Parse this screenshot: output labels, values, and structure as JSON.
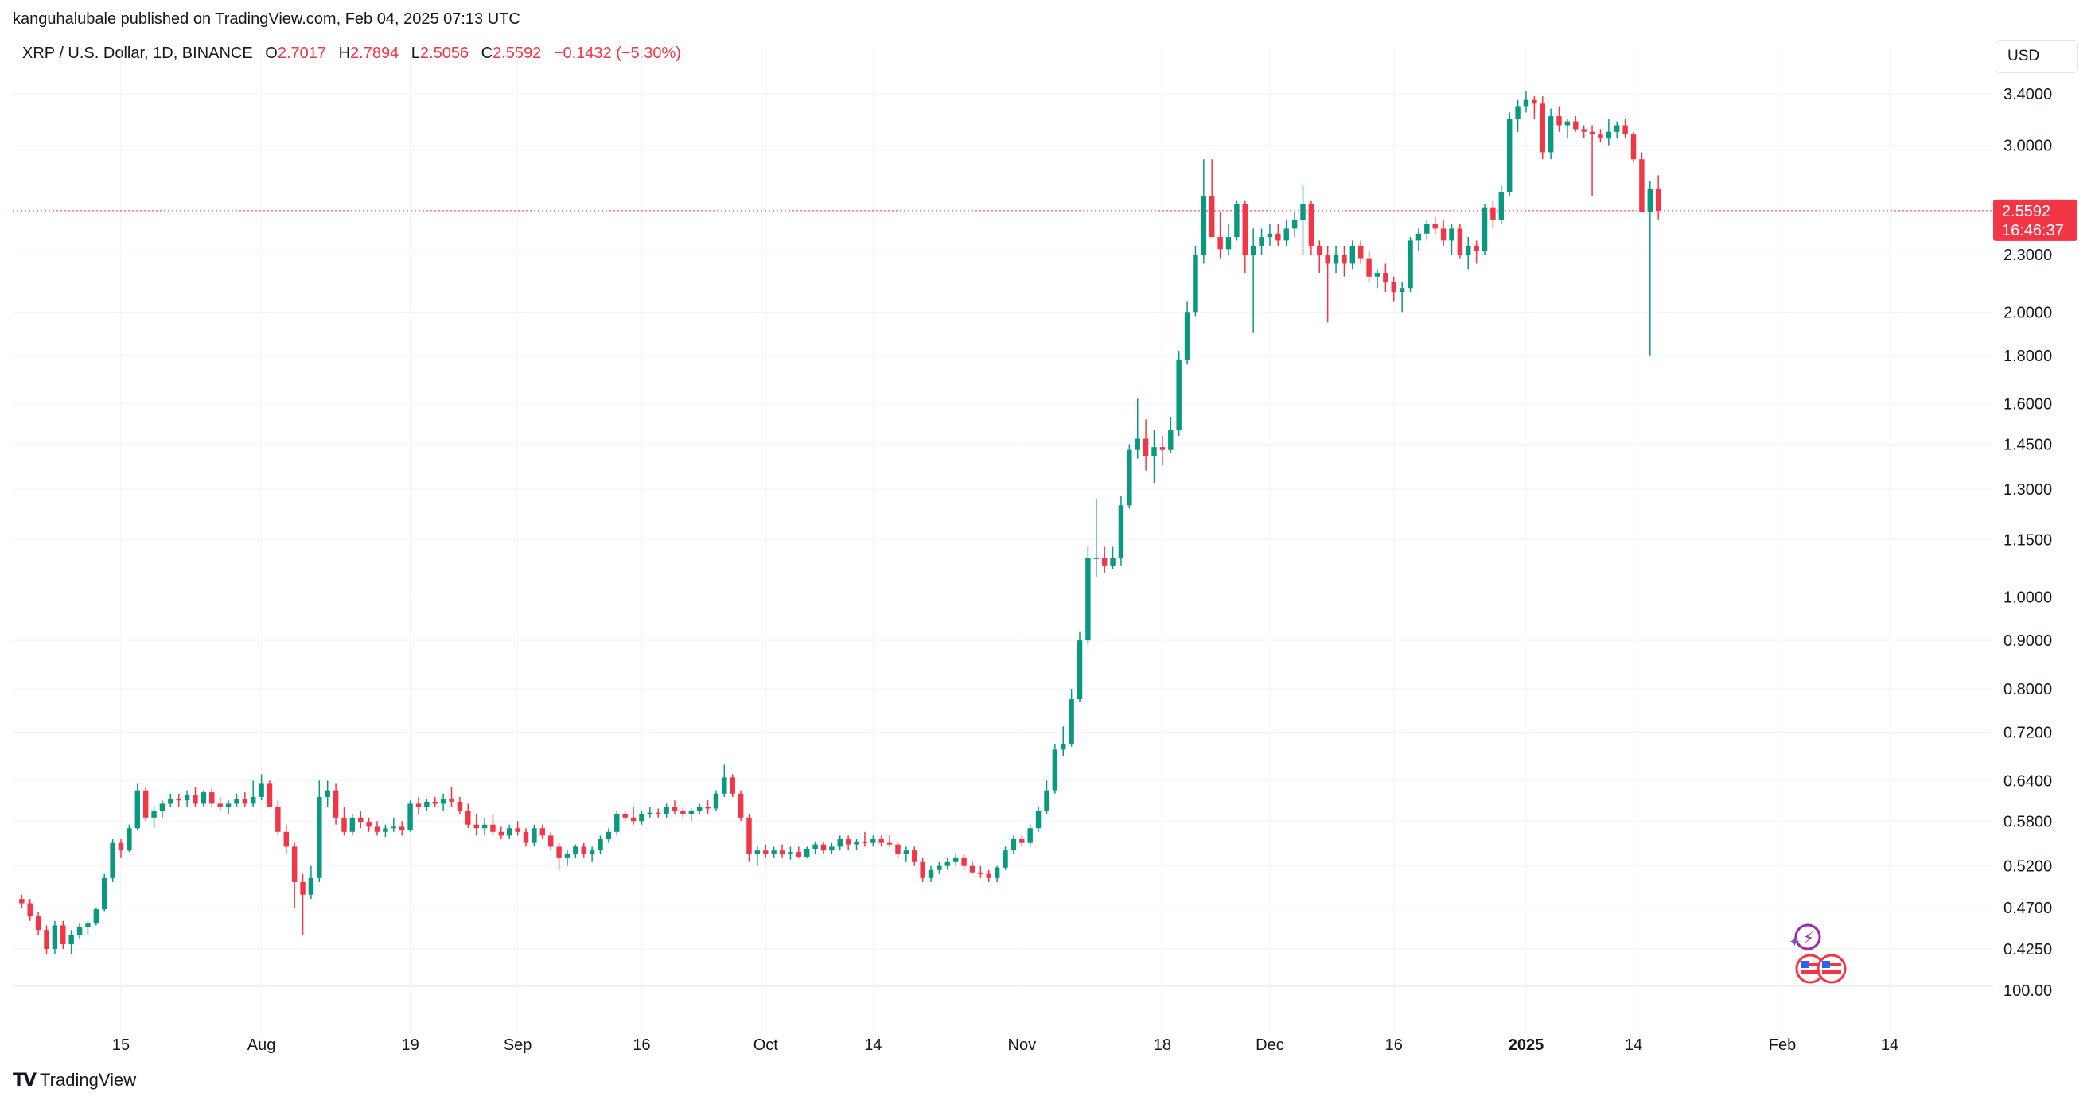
{
  "publisher_line": "kanguhalubale published on TradingView.com, Feb 04, 2025 07:13 UTC",
  "legend": {
    "symbol": "XRP / U.S. Dollar, 1D, BINANCE",
    "open_label": "O",
    "open": "2.7017",
    "high_label": "H",
    "high": "2.7894",
    "low_label": "L",
    "low": "2.5056",
    "close_label": "C",
    "close": "2.5592",
    "change": "−0.1432 (−5.30%)"
  },
  "currency": "USD",
  "current_price_label": "2.5592",
  "countdown_label": "16:46:37",
  "footer_brand": "TradingView",
  "colors": {
    "up": "#089981",
    "down": "#f23645",
    "grid": "#f0f3fa",
    "axis_text": "#131722",
    "last_price": "#f23645"
  },
  "chart_data": {
    "type": "candlestick",
    "scale": "log",
    "y_ticks": [
      "3.4000",
      "3.0000",
      "2.3000",
      "2.0000",
      "1.8000",
      "1.6000",
      "1.4500",
      "1.3000",
      "1.1500",
      "1.0000",
      "0.9000",
      "0.8000",
      "0.7200",
      "0.6400",
      "0.5800",
      "0.5200",
      "0.4700",
      "0.4250"
    ],
    "y_tick_values": [
      3.4,
      3.0,
      2.3,
      2.0,
      1.8,
      1.6,
      1.45,
      1.3,
      1.15,
      1.0,
      0.9,
      0.8,
      0.72,
      0.64,
      0.58,
      0.52,
      0.47,
      0.425
    ],
    "y_bottom_label": "100.00",
    "x_ticks": [
      {
        "label": "15",
        "date": "2024-07-15"
      },
      {
        "label": "Aug",
        "date": "2024-08-01"
      },
      {
        "label": "19",
        "date": "2024-08-19"
      },
      {
        "label": "Sep",
        "date": "2024-09-01"
      },
      {
        "label": "16",
        "date": "2024-09-16"
      },
      {
        "label": "Oct",
        "date": "2024-10-01"
      },
      {
        "label": "14",
        "date": "2024-10-14"
      },
      {
        "label": "Nov",
        "date": "2024-11-01"
      },
      {
        "label": "18",
        "date": "2024-11-18"
      },
      {
        "label": "Dec",
        "date": "2024-12-01"
      },
      {
        "label": "16",
        "date": "2024-12-16"
      },
      {
        "label": "2025",
        "date": "2025-01-01",
        "bold": true
      },
      {
        "label": "14",
        "date": "2025-01-14"
      },
      {
        "label": "Feb",
        "date": "2025-02-01"
      },
      {
        "label": "14",
        "date": "2025-02-14"
      }
    ],
    "start_date": "2024-07-03",
    "ohlc": [
      [
        0.48,
        0.485,
        0.47,
        0.475
      ],
      [
        0.475,
        0.48,
        0.455,
        0.46
      ],
      [
        0.46,
        0.465,
        0.44,
        0.445
      ],
      [
        0.445,
        0.45,
        0.42,
        0.425
      ],
      [
        0.425,
        0.455,
        0.42,
        0.45
      ],
      [
        0.45,
        0.455,
        0.425,
        0.43
      ],
      [
        0.43,
        0.445,
        0.42,
        0.44
      ],
      [
        0.44,
        0.452,
        0.435,
        0.448
      ],
      [
        0.448,
        0.455,
        0.44,
        0.452
      ],
      [
        0.452,
        0.47,
        0.45,
        0.468
      ],
      [
        0.468,
        0.51,
        0.466,
        0.505
      ],
      [
        0.505,
        0.555,
        0.5,
        0.55
      ],
      [
        0.55,
        0.555,
        0.53,
        0.54
      ],
      [
        0.54,
        0.575,
        0.538,
        0.57
      ],
      [
        0.57,
        0.635,
        0.568,
        0.625
      ],
      [
        0.625,
        0.63,
        0.58,
        0.585
      ],
      [
        0.585,
        0.6,
        0.57,
        0.595
      ],
      [
        0.595,
        0.61,
        0.585,
        0.605
      ],
      [
        0.605,
        0.62,
        0.6,
        0.612
      ],
      [
        0.612,
        0.62,
        0.6,
        0.61
      ],
      [
        0.61,
        0.625,
        0.6,
        0.618
      ],
      [
        0.618,
        0.63,
        0.6,
        0.605
      ],
      [
        0.605,
        0.625,
        0.6,
        0.622
      ],
      [
        0.622,
        0.628,
        0.6,
        0.605
      ],
      [
        0.605,
        0.615,
        0.595,
        0.6
      ],
      [
        0.6,
        0.61,
        0.59,
        0.605
      ],
      [
        0.605,
        0.62,
        0.6,
        0.612
      ],
      [
        0.612,
        0.622,
        0.6,
        0.605
      ],
      [
        0.605,
        0.64,
        0.6,
        0.615
      ],
      [
        0.615,
        0.65,
        0.61,
        0.635
      ],
      [
        0.635,
        0.64,
        0.6,
        0.6
      ],
      [
        0.6,
        0.61,
        0.56,
        0.565
      ],
      [
        0.565,
        0.575,
        0.535,
        0.545
      ],
      [
        0.545,
        0.55,
        0.47,
        0.5
      ],
      [
        0.5,
        0.51,
        0.44,
        0.485
      ],
      [
        0.485,
        0.52,
        0.48,
        0.505
      ],
      [
        0.505,
        0.64,
        0.5,
        0.615
      ],
      [
        0.615,
        0.64,
        0.6,
        0.625
      ],
      [
        0.625,
        0.635,
        0.575,
        0.585
      ],
      [
        0.585,
        0.6,
        0.56,
        0.565
      ],
      [
        0.565,
        0.59,
        0.56,
        0.585
      ],
      [
        0.585,
        0.595,
        0.57,
        0.578
      ],
      [
        0.578,
        0.585,
        0.565,
        0.572
      ],
      [
        0.572,
        0.58,
        0.56,
        0.565
      ],
      [
        0.565,
        0.575,
        0.558,
        0.57
      ],
      [
        0.57,
        0.585,
        0.565,
        0.572
      ],
      [
        0.572,
        0.58,
        0.56,
        0.568
      ],
      [
        0.568,
        0.61,
        0.565,
        0.605
      ],
      [
        0.605,
        0.615,
        0.59,
        0.6
      ],
      [
        0.6,
        0.612,
        0.595,
        0.608
      ],
      [
        0.608,
        0.615,
        0.6,
        0.605
      ],
      [
        0.605,
        0.62,
        0.595,
        0.612
      ],
      [
        0.612,
        0.63,
        0.6,
        0.608
      ],
      [
        0.608,
        0.615,
        0.59,
        0.595
      ],
      [
        0.595,
        0.605,
        0.57,
        0.575
      ],
      [
        0.575,
        0.59,
        0.56,
        0.57
      ],
      [
        0.57,
        0.585,
        0.56,
        0.575
      ],
      [
        0.575,
        0.59,
        0.56,
        0.565
      ],
      [
        0.565,
        0.572,
        0.555,
        0.56
      ],
      [
        0.56,
        0.575,
        0.555,
        0.57
      ],
      [
        0.57,
        0.58,
        0.56,
        0.565
      ],
      [
        0.565,
        0.57,
        0.545,
        0.55
      ],
      [
        0.55,
        0.575,
        0.545,
        0.57
      ],
      [
        0.57,
        0.575,
        0.555,
        0.56
      ],
      [
        0.56,
        0.565,
        0.54,
        0.545
      ],
      [
        0.545,
        0.55,
        0.515,
        0.53
      ],
      [
        0.53,
        0.54,
        0.52,
        0.535
      ],
      [
        0.535,
        0.548,
        0.53,
        0.545
      ],
      [
        0.545,
        0.55,
        0.53,
        0.535
      ],
      [
        0.535,
        0.545,
        0.525,
        0.54
      ],
      [
        0.54,
        0.56,
        0.535,
        0.555
      ],
      [
        0.555,
        0.57,
        0.55,
        0.565
      ],
      [
        0.565,
        0.595,
        0.56,
        0.59
      ],
      [
        0.59,
        0.595,
        0.58,
        0.585
      ],
      [
        0.585,
        0.6,
        0.575,
        0.58
      ],
      [
        0.58,
        0.595,
        0.575,
        0.59
      ],
      [
        0.59,
        0.6,
        0.585,
        0.592
      ],
      [
        0.592,
        0.598,
        0.585,
        0.59
      ],
      [
        0.59,
        0.605,
        0.585,
        0.6
      ],
      [
        0.6,
        0.61,
        0.59,
        0.595
      ],
      [
        0.595,
        0.6,
        0.585,
        0.59
      ],
      [
        0.59,
        0.598,
        0.58,
        0.595
      ],
      [
        0.595,
        0.605,
        0.59,
        0.6
      ],
      [
        0.6,
        0.61,
        0.59,
        0.598
      ],
      [
        0.598,
        0.625,
        0.595,
        0.62
      ],
      [
        0.62,
        0.665,
        0.615,
        0.645
      ],
      [
        0.645,
        0.65,
        0.615,
        0.62
      ],
      [
        0.62,
        0.625,
        0.58,
        0.585
      ],
      [
        0.585,
        0.59,
        0.525,
        0.535
      ],
      [
        0.535,
        0.545,
        0.52,
        0.54
      ],
      [
        0.54,
        0.548,
        0.53,
        0.535
      ],
      [
        0.535,
        0.545,
        0.53,
        0.54
      ],
      [
        0.54,
        0.548,
        0.53,
        0.535
      ],
      [
        0.535,
        0.545,
        0.528,
        0.538
      ],
      [
        0.538,
        0.545,
        0.53,
        0.532
      ],
      [
        0.532,
        0.545,
        0.53,
        0.542
      ],
      [
        0.542,
        0.552,
        0.535,
        0.548
      ],
      [
        0.548,
        0.552,
        0.535,
        0.54
      ],
      [
        0.54,
        0.55,
        0.535,
        0.545
      ],
      [
        0.545,
        0.56,
        0.54,
        0.555
      ],
      [
        0.555,
        0.56,
        0.54,
        0.548
      ],
      [
        0.548,
        0.555,
        0.54,
        0.552
      ],
      [
        0.552,
        0.565,
        0.545,
        0.55
      ],
      [
        0.55,
        0.56,
        0.545,
        0.555
      ],
      [
        0.555,
        0.56,
        0.545,
        0.55
      ],
      [
        0.55,
        0.56,
        0.545,
        0.548
      ],
      [
        0.548,
        0.552,
        0.53,
        0.535
      ],
      [
        0.535,
        0.545,
        0.525,
        0.54
      ],
      [
        0.54,
        0.545,
        0.52,
        0.525
      ],
      [
        0.525,
        0.53,
        0.5,
        0.505
      ],
      [
        0.505,
        0.52,
        0.5,
        0.515
      ],
      [
        0.515,
        0.525,
        0.51,
        0.52
      ],
      [
        0.52,
        0.53,
        0.515,
        0.525
      ],
      [
        0.525,
        0.535,
        0.52,
        0.53
      ],
      [
        0.53,
        0.535,
        0.515,
        0.52
      ],
      [
        0.52,
        0.525,
        0.51,
        0.512
      ],
      [
        0.512,
        0.52,
        0.505,
        0.51
      ],
      [
        0.51,
        0.515,
        0.5,
        0.505
      ],
      [
        0.505,
        0.52,
        0.5,
        0.518
      ],
      [
        0.518,
        0.545,
        0.515,
        0.54
      ],
      [
        0.54,
        0.56,
        0.535,
        0.555
      ],
      [
        0.555,
        0.56,
        0.545,
        0.55
      ],
      [
        0.55,
        0.575,
        0.545,
        0.57
      ],
      [
        0.57,
        0.6,
        0.565,
        0.595
      ],
      [
        0.595,
        0.64,
        0.59,
        0.625
      ],
      [
        0.625,
        0.7,
        0.62,
        0.69
      ],
      [
        0.69,
        0.73,
        0.68,
        0.7
      ],
      [
        0.7,
        0.8,
        0.695,
        0.78
      ],
      [
        0.78,
        0.92,
        0.775,
        0.9
      ],
      [
        0.9,
        1.13,
        0.89,
        1.1
      ],
      [
        1.1,
        1.27,
        1.05,
        1.1
      ],
      [
        1.1,
        1.13,
        1.06,
        1.08
      ],
      [
        1.08,
        1.13,
        1.07,
        1.1
      ],
      [
        1.1,
        1.28,
        1.08,
        1.25
      ],
      [
        1.25,
        1.45,
        1.24,
        1.43
      ],
      [
        1.43,
        1.62,
        1.4,
        1.47
      ],
      [
        1.47,
        1.54,
        1.36,
        1.41
      ],
      [
        1.41,
        1.5,
        1.32,
        1.44
      ],
      [
        1.44,
        1.48,
        1.38,
        1.43
      ],
      [
        1.43,
        1.55,
        1.42,
        1.5
      ],
      [
        1.5,
        1.82,
        1.48,
        1.78
      ],
      [
        1.78,
        2.05,
        1.76,
        2.0
      ],
      [
        2.0,
        2.35,
        1.98,
        2.3
      ],
      [
        2.3,
        2.9,
        2.25,
        2.65
      ],
      [
        2.65,
        2.9,
        2.4,
        2.4
      ],
      [
        2.4,
        2.55,
        2.28,
        2.33
      ],
      [
        2.33,
        2.48,
        2.3,
        2.4
      ],
      [
        2.4,
        2.62,
        2.38,
        2.6
      ],
      [
        2.6,
        2.62,
        2.2,
        2.3
      ],
      [
        2.3,
        2.45,
        1.9,
        2.35
      ],
      [
        2.35,
        2.45,
        2.3,
        2.4
      ],
      [
        2.4,
        2.48,
        2.35,
        2.42
      ],
      [
        2.42,
        2.48,
        2.35,
        2.38
      ],
      [
        2.38,
        2.5,
        2.35,
        2.45
      ],
      [
        2.45,
        2.55,
        2.4,
        2.5
      ],
      [
        2.5,
        2.72,
        2.3,
        2.6
      ],
      [
        2.6,
        2.62,
        2.3,
        2.35
      ],
      [
        2.35,
        2.38,
        2.2,
        2.3
      ],
      [
        2.3,
        2.35,
        1.95,
        2.25
      ],
      [
        2.25,
        2.35,
        2.2,
        2.3
      ],
      [
        2.3,
        2.35,
        2.18,
        2.25
      ],
      [
        2.25,
        2.38,
        2.22,
        2.35
      ],
      [
        2.35,
        2.38,
        2.25,
        2.28
      ],
      [
        2.28,
        2.32,
        2.15,
        2.18
      ],
      [
        2.18,
        2.22,
        2.12,
        2.2
      ],
      [
        2.2,
        2.25,
        2.1,
        2.15
      ],
      [
        2.15,
        2.18,
        2.05,
        2.1
      ],
      [
        2.1,
        2.15,
        2.0,
        2.12
      ],
      [
        2.12,
        2.4,
        2.1,
        2.38
      ],
      [
        2.38,
        2.45,
        2.32,
        2.42
      ],
      [
        2.42,
        2.5,
        2.38,
        2.48
      ],
      [
        2.48,
        2.52,
        2.42,
        2.45
      ],
      [
        2.45,
        2.5,
        2.35,
        2.38
      ],
      [
        2.38,
        2.48,
        2.3,
        2.45
      ],
      [
        2.45,
        2.48,
        2.28,
        2.3
      ],
      [
        2.3,
        2.4,
        2.22,
        2.35
      ],
      [
        2.35,
        2.38,
        2.25,
        2.32
      ],
      [
        2.32,
        2.6,
        2.3,
        2.58
      ],
      [
        2.58,
        2.62,
        2.45,
        2.5
      ],
      [
        2.5,
        2.72,
        2.48,
        2.68
      ],
      [
        2.68,
        3.25,
        2.65,
        3.2
      ],
      [
        3.2,
        3.35,
        3.1,
        3.3
      ],
      [
        3.3,
        3.42,
        3.25,
        3.35
      ],
      [
        3.35,
        3.38,
        3.2,
        3.32
      ],
      [
        3.32,
        3.38,
        2.9,
        2.95
      ],
      [
        2.95,
        3.28,
        2.9,
        3.22
      ],
      [
        3.22,
        3.3,
        3.1,
        3.15
      ],
      [
        3.15,
        3.2,
        3.05,
        3.18
      ],
      [
        3.18,
        3.22,
        3.1,
        3.12
      ],
      [
        3.12,
        3.15,
        3.05,
        3.1
      ],
      [
        3.1,
        3.15,
        2.65,
        3.08
      ],
      [
        3.08,
        3.12,
        3.02,
        3.05
      ],
      [
        3.05,
        3.2,
        3.0,
        3.1
      ],
      [
        3.1,
        3.18,
        3.05,
        3.15
      ],
      [
        3.15,
        3.2,
        3.05,
        3.08
      ],
      [
        3.08,
        3.1,
        2.88,
        2.9
      ],
      [
        2.9,
        2.95,
        2.55,
        2.55
      ],
      [
        2.55,
        2.75,
        1.8,
        2.7
      ],
      [
        2.7017,
        2.7894,
        2.5056,
        2.5592
      ]
    ]
  }
}
